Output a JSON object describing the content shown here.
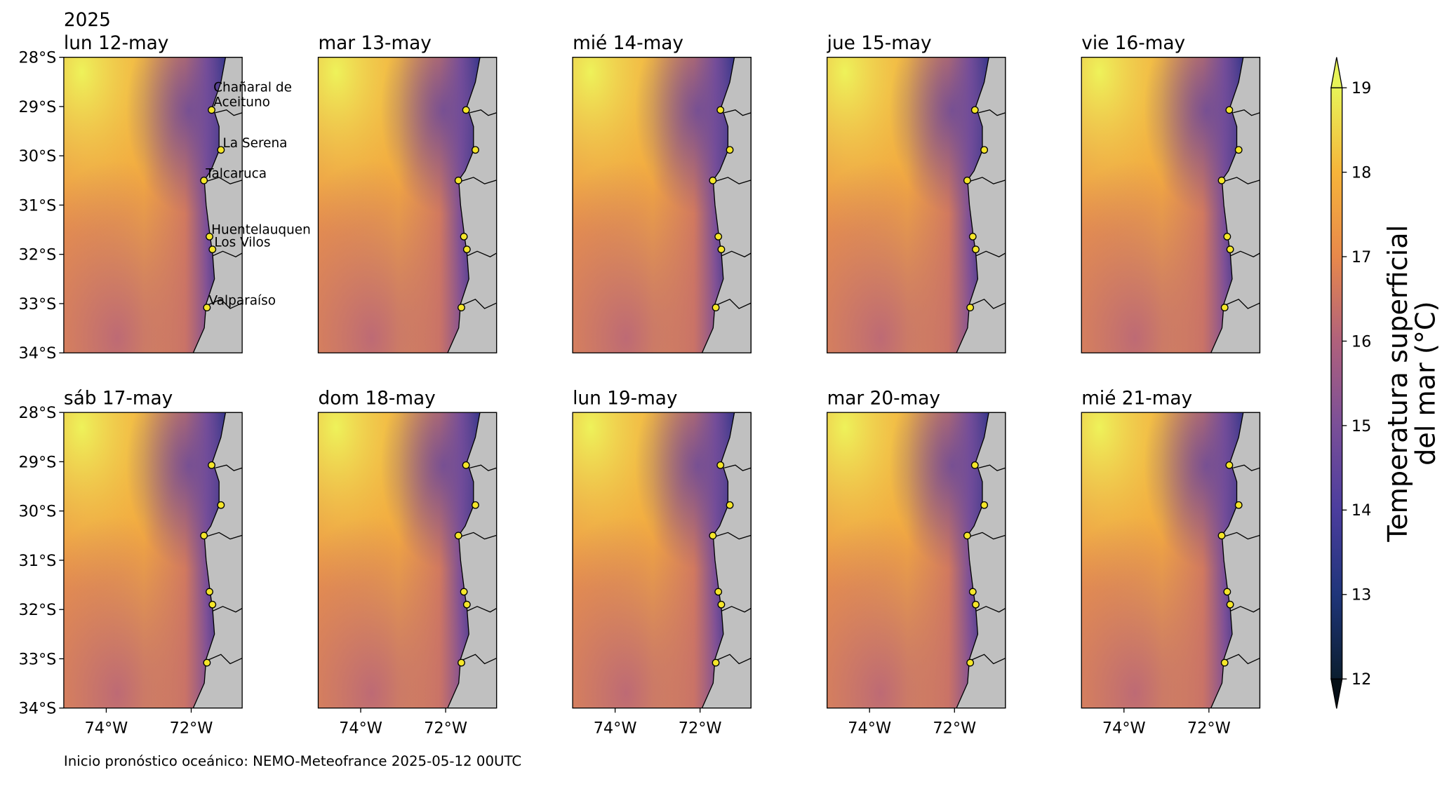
{
  "year": "2025",
  "panels": [
    {
      "title": "lun 12-may"
    },
    {
      "title": "mar 13-may"
    },
    {
      "title": "mié 14-may"
    },
    {
      "title": "jue 15-may"
    },
    {
      "title": "vie 16-may"
    },
    {
      "title": "sáb 17-may"
    },
    {
      "title": "dom 18-may"
    },
    {
      "title": "lun 19-may"
    },
    {
      "title": "mar 20-may"
    },
    {
      "title": "mié 21-may"
    }
  ],
  "map": {
    "lon_range": [
      -75,
      -70.8
    ],
    "lat_range": [
      -34,
      -28
    ],
    "lat_ticks": [
      {
        "value": -28,
        "label": "28°S"
      },
      {
        "value": -29,
        "label": "29°S"
      },
      {
        "value": -30,
        "label": "30°S"
      },
      {
        "value": -31,
        "label": "31°S"
      },
      {
        "value": -32,
        "label": "32°S"
      },
      {
        "value": -33,
        "label": "33°S"
      },
      {
        "value": -34,
        "label": "34°S"
      }
    ],
    "lon_ticks": [
      {
        "value": -74,
        "label": "74°W"
      },
      {
        "value": -72,
        "label": "72°W"
      }
    ]
  },
  "places": [
    {
      "name": [
        "Chañaral de",
        "Aceituno"
      ],
      "lat": -29.07,
      "lon": -71.52
    },
    {
      "name": "La Serena",
      "lat": -29.88,
      "lon": -71.3
    },
    {
      "name": "Talcaruca",
      "lat": -30.5,
      "lon": -71.7
    },
    {
      "name": "Huentelauquen",
      "lat": -31.64,
      "lon": -71.57
    },
    {
      "name": "Los Vilos",
      "lat": -31.9,
      "lon": -71.5
    },
    {
      "name": "Valparaíso",
      "lat": -33.08,
      "lon": -71.63
    }
  ],
  "colorbar": {
    "label": [
      "Temperatura superficial",
      "del mar (°C)"
    ],
    "lim": [
      12,
      19
    ],
    "ticks": [
      12,
      13,
      14,
      15,
      16,
      17,
      18,
      19
    ],
    "colors": [
      "#0b1e2f",
      "#1f357a",
      "#4b3d9e",
      "#7a4f98",
      "#b0617c",
      "#e8884b",
      "#f6b43a",
      "#e8f458"
    ]
  },
  "footer": "Inicio pronóstico oceánico: NEMO-Meteofrance 2025-05-12 00UTC"
}
